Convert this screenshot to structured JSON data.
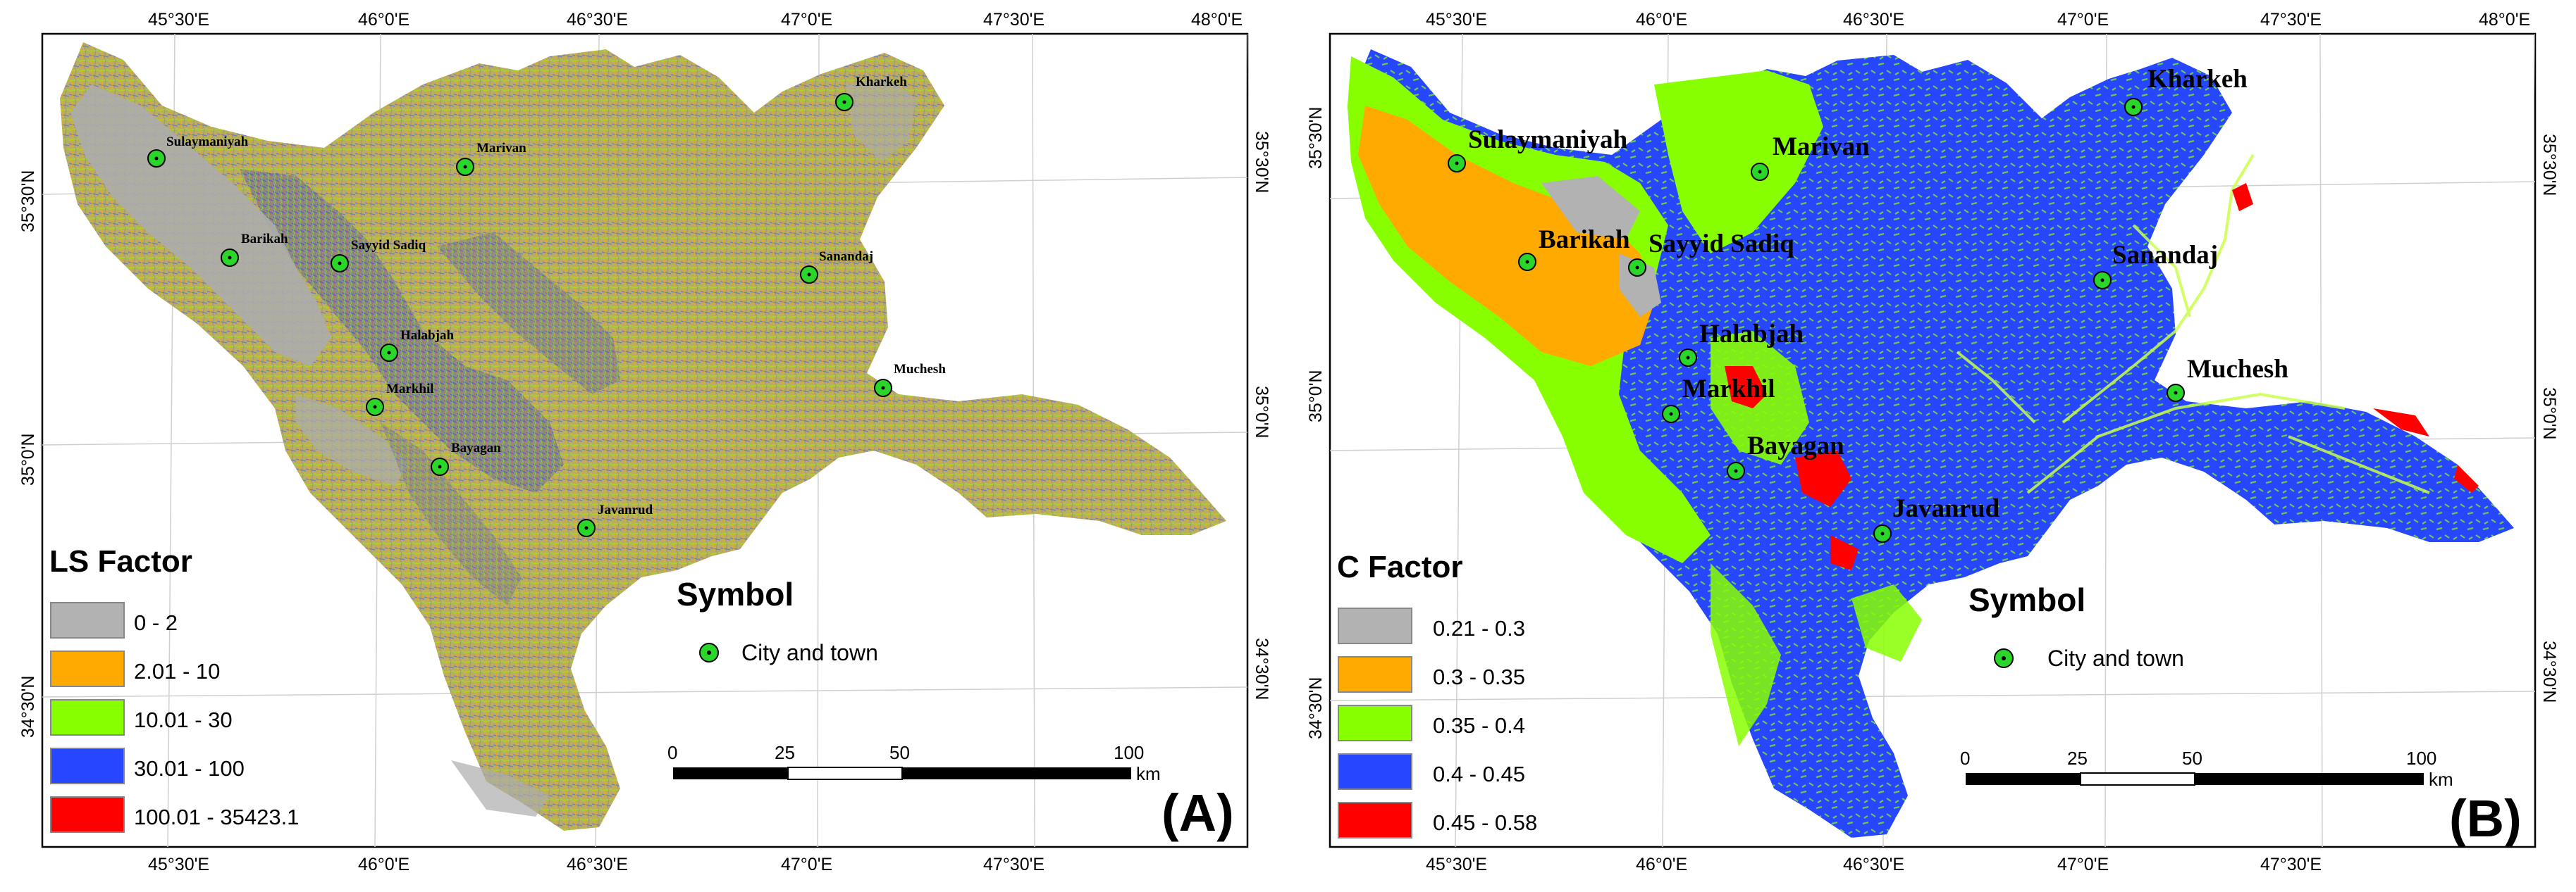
{
  "panels": [
    {
      "id": "A",
      "panel_label": "(A)",
      "legend": {
        "title": "LS Factor",
        "classes": [
          {
            "label": "0 - 2",
            "color": "#b2b2b2"
          },
          {
            "label": "2.01 - 10",
            "color": "#ffaa00"
          },
          {
            "label": "10.01 - 30",
            "color": "#88ff00"
          },
          {
            "label": "30.01 - 100",
            "color": "#2646ff"
          },
          {
            "label": "100.01 - 35423.1",
            "color": "#ff0000"
          }
        ]
      },
      "symbol": {
        "title": "Symbol",
        "label": "City and town"
      },
      "scalebar": {
        "ticks": [
          "0",
          "25",
          "50",
          "100"
        ],
        "unit": "km"
      },
      "graticule": {
        "top": [
          "45°30'E",
          "46°0'E",
          "46°30'E",
          "47°0'E",
          "47°30'E",
          "48°0'E"
        ],
        "bottom": [
          "45°30'E",
          "46°0'E",
          "46°30'E",
          "47°0'E",
          "47°30'E"
        ],
        "left": [
          "35°30'N",
          "35°0'N",
          "34°30'N"
        ],
        "right": [
          "35°30'N",
          "35°0'N",
          "34°30'N"
        ]
      },
      "cities": [
        "Kharkeh",
        "Sulaymaniyah",
        "Marivan",
        "Barikah",
        "Sayyid Sadiq",
        "Sanandaj",
        "Halabjah",
        "Muchesh",
        "Markhil",
        "Bayagan",
        "Javanrud"
      ]
    },
    {
      "id": "B",
      "panel_label": "(B)",
      "legend": {
        "title": "C Factor",
        "classes": [
          {
            "label": "0.21 - 0.3",
            "color": "#b2b2b2"
          },
          {
            "label": "0.3 - 0.35",
            "color": "#ffaa00"
          },
          {
            "label": "0.35 - 0.4",
            "color": "#88ff00"
          },
          {
            "label": "0.4 - 0.45",
            "color": "#2646ff"
          },
          {
            "label": "0.45 - 0.58",
            "color": "#ff0000"
          }
        ]
      },
      "symbol": {
        "title": "Symbol",
        "label": "City and town"
      },
      "scalebar": {
        "ticks": [
          "0",
          "25",
          "50",
          "100"
        ],
        "unit": "km"
      },
      "graticule": {
        "top": [
          "45°30'E",
          "46°0'E",
          "46°30'E",
          "47°0'E",
          "47°30'E",
          "48°0'E"
        ],
        "bottom": [
          "45°30'E",
          "46°0'E",
          "46°30'E",
          "47°0'E",
          "47°30'E"
        ],
        "left": [
          "35°30'N",
          "35°0'N",
          "34°30'N"
        ],
        "right": [
          "35°30'N",
          "35°0'N",
          "34°30'N"
        ]
      },
      "cities": [
        "Kharkeh",
        "Sulaymaniyah",
        "Marivan",
        "Barikah",
        "Sayyid Sadiq",
        "Sanandaj",
        "Halabjah",
        "Muchesh",
        "Markhil",
        "Bayagan",
        "Javanrud"
      ]
    }
  ]
}
